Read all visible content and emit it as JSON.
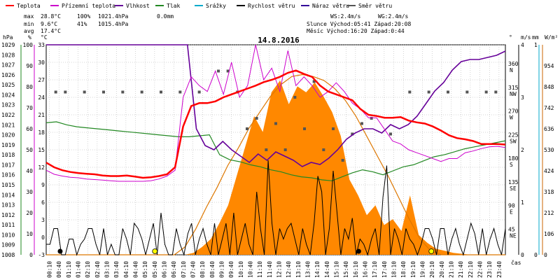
{
  "chart_data": {
    "type": "line",
    "title": "14.8.2016",
    "legend": [
      {
        "label": "Teplota",
        "color": "#ff0000"
      },
      {
        "label": "Přízemní teplota",
        "color": "#cc00cc"
      },
      {
        "label": "Vlhkost",
        "color": "#660099"
      },
      {
        "label": "Tlak",
        "color": "#228822"
      },
      {
        "label": "Srážky",
        "color": "#00aacc"
      },
      {
        "label": "Rychlost větru",
        "color": "#000000"
      },
      {
        "label": "Náraz větru",
        "color": "#330099"
      },
      {
        "label": "Směr větru",
        "color": "#555555"
      }
    ],
    "stats": {
      "max_label": "max",
      "max_temp": "28.8°C",
      "max_hum": "100%",
      "max_press": "1021.4hPa",
      "max_rain": "0.0mm",
      "min_label": "min",
      "min_temp": "9.6°C",
      "min_hum": "41%",
      "min_press": "1015.4hPa",
      "avg_label": "avg",
      "avg_temp": "17.4°C",
      "ws": "WS:2.4m/s",
      "wg": "WG:2.4m/s",
      "sun": "Slunce Východ:05:41  Západ:20:08",
      "moon": "Měsíc  Východ:16:20  Západ:0:44"
    },
    "axis_labels": {
      "hpa": "hPa",
      "pct": "%",
      "degc": "°C",
      "deg": "°",
      "ms": "m/s",
      "mm": "mm",
      "wm2": "W/m²",
      "cas": "čas"
    },
    "axes": {
      "pressure": {
        "range": [
          1008,
          1029
        ],
        "ticks": [
          "1008",
          "1009",
          "1010",
          "1011",
          "1012",
          "1013",
          "1014",
          "1015",
          "1016",
          "1017",
          "1018",
          "1019",
          "1020",
          "1021",
          "1022",
          "1023",
          "1024",
          "1025",
          "1026",
          "1027",
          "1028",
          "1029"
        ]
      },
      "humidity": {
        "range": [
          0,
          100
        ],
        "ticks": [
          "0",
          "10",
          "20",
          "30",
          "40",
          "50",
          "60",
          "70",
          "80",
          "90",
          "100"
        ]
      },
      "temperature": {
        "range": [
          -3,
          33
        ],
        "ticks": [
          "-3",
          "0",
          "3",
          "6",
          "9",
          "12",
          "15",
          "18",
          "21",
          "24",
          "27",
          "30",
          "33"
        ]
      },
      "wind_dir": {
        "ticks": [
          {
            "deg": "360",
            "dir": "N"
          },
          {
            "deg": "315",
            "dir": "NW"
          },
          {
            "deg": "270",
            "dir": "W"
          },
          {
            "deg": "225",
            "dir": "SW"
          },
          {
            "deg": "180",
            "dir": "S"
          },
          {
            "deg": "135",
            "dir": "SE"
          },
          {
            "deg": "90",
            "dir": "E"
          },
          {
            "deg": "45",
            "dir": "NE"
          }
        ]
      },
      "wind_speed": {
        "range": [
          0,
          4
        ],
        "ticks": [
          "0",
          "1",
          "2",
          "3",
          "4"
        ]
      },
      "rain": {
        "range": [
          0,
          1
        ],
        "ticks": [
          "0",
          "1"
        ]
      },
      "radiation": {
        "range": [
          0,
          1060
        ],
        "ticks": [
          "0",
          "106",
          "212",
          "318",
          "424",
          "530",
          "636",
          "742",
          "848",
          "954"
        ]
      }
    },
    "time_labels": [
      "00:10",
      "00:40",
      "01:10",
      "01:40",
      "02:10",
      "02:40",
      "03:10",
      "03:40",
      "04:10",
      "04:40",
      "05:10",
      "05:40",
      "06:10",
      "06:40",
      "07:10",
      "07:40",
      "08:10",
      "08:40",
      "09:10",
      "09:40",
      "10:10",
      "10:40",
      "11:10",
      "11:40",
      "12:10",
      "12:40",
      "13:10",
      "13:40",
      "14:10",
      "14:40",
      "15:10",
      "15:40",
      "16:10",
      "16:40",
      "17:10",
      "17:40",
      "18:10",
      "18:40",
      "19:10",
      "19:40",
      "20:10",
      "20:40",
      "21:10",
      "21:40",
      "22:10",
      "22:40",
      "23:10",
      "23:40"
    ],
    "hours_raw": [
      0,
      0.5,
      1,
      1.5,
      2,
      2.5,
      3,
      3.5,
      4,
      4.5,
      5,
      5.5,
      6,
      6.5,
      7,
      7.5,
      8,
      8.25,
      8.5,
      8.75,
      9,
      9.25,
      9.5,
      9.75,
      10,
      10.25,
      10.5,
      10.75,
      11,
      11.25,
      11.5,
      11.75,
      12,
      12.25,
      12.5,
      12.75,
      13,
      13.25,
      13.5,
      13.75,
      14,
      14.25,
      14.5,
      14.75,
      15,
      15.25,
      15.5,
      15.75,
      16,
      16.5,
      17,
      17.5,
      18,
      18.5,
      19,
      19.5,
      20,
      20.5,
      21,
      21.5,
      22,
      22.5,
      23,
      23.5,
      24
    ],
    "series_temperature": [
      12.8,
      12,
      11.5,
      11.2,
      11,
      10.9,
      10.8,
      10.6,
      10.5,
      10.5,
      10.6,
      10.4,
      10.2,
      10.3,
      10.5,
      10.8,
      12,
      19,
      22.5,
      23,
      23,
      23.3,
      24,
      24.5,
      25,
      25.5,
      26,
      26.6,
      27,
      27.5,
      28.2,
      28.6,
      28,
      27.5,
      26,
      25,
      24.5,
      24,
      23.5,
      22,
      21,
      20.8,
      20.5,
      20.5,
      20.6,
      20,
      19.7,
      19.5,
      19,
      18.3,
      17.5,
      17,
      16.8,
      16.5,
      16,
      16,
      16,
      15.9
    ],
    "series_ground_temp": [
      11.5,
      10.8,
      10.5,
      10.3,
      10.2,
      10,
      9.9,
      9.8,
      9.7,
      9.6,
      9.6,
      9.6,
      9.6,
      9.7,
      10,
      10.5,
      11.5,
      24,
      27.5,
      26,
      25,
      28.5,
      24.5,
      30,
      24,
      26,
      33,
      27,
      29,
      25,
      32,
      26,
      27.5,
      26,
      24,
      25,
      26.5,
      25,
      23,
      22,
      20.5,
      20.5,
      18.5,
      16.5,
      16,
      15,
      14.5,
      14,
      13.5,
      13,
      13.5,
      13.5,
      14.5,
      14.8,
      15.2,
      15.5,
      15.6,
      15.4
    ],
    "series_humidity": [
      100,
      100,
      100,
      100,
      100,
      100,
      100,
      100,
      100,
      100,
      100,
      100,
      100,
      100,
      100,
      100,
      100,
      60,
      52,
      50,
      54,
      50,
      47,
      44,
      48,
      45,
      49,
      47,
      45,
      42,
      44,
      43,
      46,
      50,
      55,
      58,
      60,
      60,
      58,
      62,
      60,
      62,
      66,
      72,
      78,
      82,
      88,
      92,
      93,
      93,
      94,
      95,
      97
    ],
    "series_pressure": [
      1021.2,
      1021.3,
      1021,
      1020.8,
      1020.7,
      1020.6,
      1020.5,
      1020.4,
      1020.3,
      1020.2,
      1020.1,
      1020,
      1019.9,
      1019.8,
      1019.8,
      1019.9,
      1020,
      1018,
      1017.5,
      1017.3,
      1017,
      1016.8,
      1016.5,
      1016.3,
      1016.0,
      1015.8,
      1015.7,
      1015.5,
      1015.4,
      1015.8,
      1016.2,
      1016.5,
      1016.3,
      1016,
      1016.4,
      1016.8,
      1017,
      1017.4,
      1017.8,
      1018,
      1018.3,
      1018.6,
      1018.8,
      1019,
      1019.2,
      1019.4
    ],
    "series_wind_speed": [
      0.2,
      0.2,
      0.5,
      0.5,
      0,
      0,
      0.3,
      0.3,
      0,
      0.2,
      0.3,
      0.5,
      0.5,
      0.2,
      0,
      0.5,
      0,
      0.2,
      0,
      0,
      0.5,
      0.3,
      0,
      0.6,
      0.5,
      0.3,
      0,
      0.3,
      0.6,
      0,
      0.8,
      0.2,
      0,
      0,
      0.5,
      0.2,
      0,
      0.4,
      0.6,
      0,
      0.3,
      0.5,
      0.2,
      0,
      0.6,
      0,
      0.3,
      0.6,
      0,
      0.8,
      0,
      0.3,
      0.6,
      0.2,
      0,
      1.2,
      0.5,
      0,
      1.8,
      0.6,
      0,
      0.5,
      0.3,
      0.5,
      0.6,
      0.3,
      0,
      0.5,
      0.2,
      0,
      0.6,
      1.5,
      1.2,
      0,
      0.5,
      1.6,
      0.8,
      0,
      0.5,
      0.3,
      0.7,
      0,
      0.3,
      0.2,
      0,
      0.3,
      0.5,
      0,
      1.1,
      1.7,
      0,
      0.5,
      0.3,
      0,
      0.5,
      0.3,
      0.2,
      0,
      0.2,
      0.5,
      0.5,
      0.3,
      0,
      0.5,
      0.5,
      0,
      0.3,
      0.5,
      0.2,
      0,
      0.3,
      0.6,
      0.4,
      0,
      0.5,
      0,
      0.3,
      0.5,
      0.2,
      0,
      0.5
    ],
    "series_radiation": [
      0,
      0,
      0,
      0,
      0,
      0,
      0,
      0,
      0,
      0,
      0,
      0,
      0,
      0,
      0,
      0,
      0,
      10,
      40,
      80,
      160,
      250,
      400,
      550,
      700,
      620,
      820,
      880,
      760,
      850,
      820,
      870,
      800,
      720,
      600,
      380,
      300,
      200,
      250,
      150,
      180,
      120,
      300,
      100,
      60,
      30,
      20,
      10,
      5,
      0,
      0,
      0,
      0,
      0
    ],
    "series_radiation_clear": [
      0,
      0,
      0,
      0,
      0,
      0,
      0,
      0,
      0,
      0,
      0,
      0,
      0,
      40,
      130,
      240,
      340,
      450,
      540,
      640,
      720,
      800,
      860,
      900,
      910,
      900,
      880,
      840,
      780,
      700,
      600,
      500,
      400,
      290,
      180,
      80,
      20,
      0,
      0,
      0,
      0,
      0,
      0,
      0
    ],
    "wind_dir_points": [
      [
        0.5,
        310
      ],
      [
        1,
        310
      ],
      [
        2,
        310
      ],
      [
        3,
        310
      ],
      [
        4,
        310
      ],
      [
        5,
        310
      ],
      [
        6,
        310
      ],
      [
        7,
        310
      ],
      [
        8,
        310
      ],
      [
        9,
        350
      ],
      [
        9.5,
        350
      ],
      [
        10,
        310
      ],
      [
        10.5,
        240
      ],
      [
        11,
        260
      ],
      [
        11.5,
        200
      ],
      [
        12,
        250
      ],
      [
        12.5,
        200
      ],
      [
        13,
        300
      ],
      [
        13.5,
        240
      ],
      [
        14,
        330
      ],
      [
        14.5,
        200
      ],
      [
        15,
        240
      ],
      [
        15.5,
        180
      ],
      [
        16,
        230
      ],
      [
        16.5,
        250
      ],
      [
        17,
        260
      ],
      [
        18,
        230
      ],
      [
        19,
        310
      ],
      [
        20,
        310
      ],
      [
        21,
        310
      ],
      [
        22,
        310
      ],
      [
        23,
        310
      ],
      [
        23.5,
        310
      ]
    ],
    "sun_markers": [
      {
        "label": "Slunce východ",
        "h": 5.68
      },
      {
        "label": "Slunce západ",
        "h": 20.13
      }
    ],
    "moon_markers": [
      {
        "label": "Měsíc východ",
        "h": 16.33
      },
      {
        "label": "Měsíc západ",
        "h": 0.73
      }
    ]
  }
}
